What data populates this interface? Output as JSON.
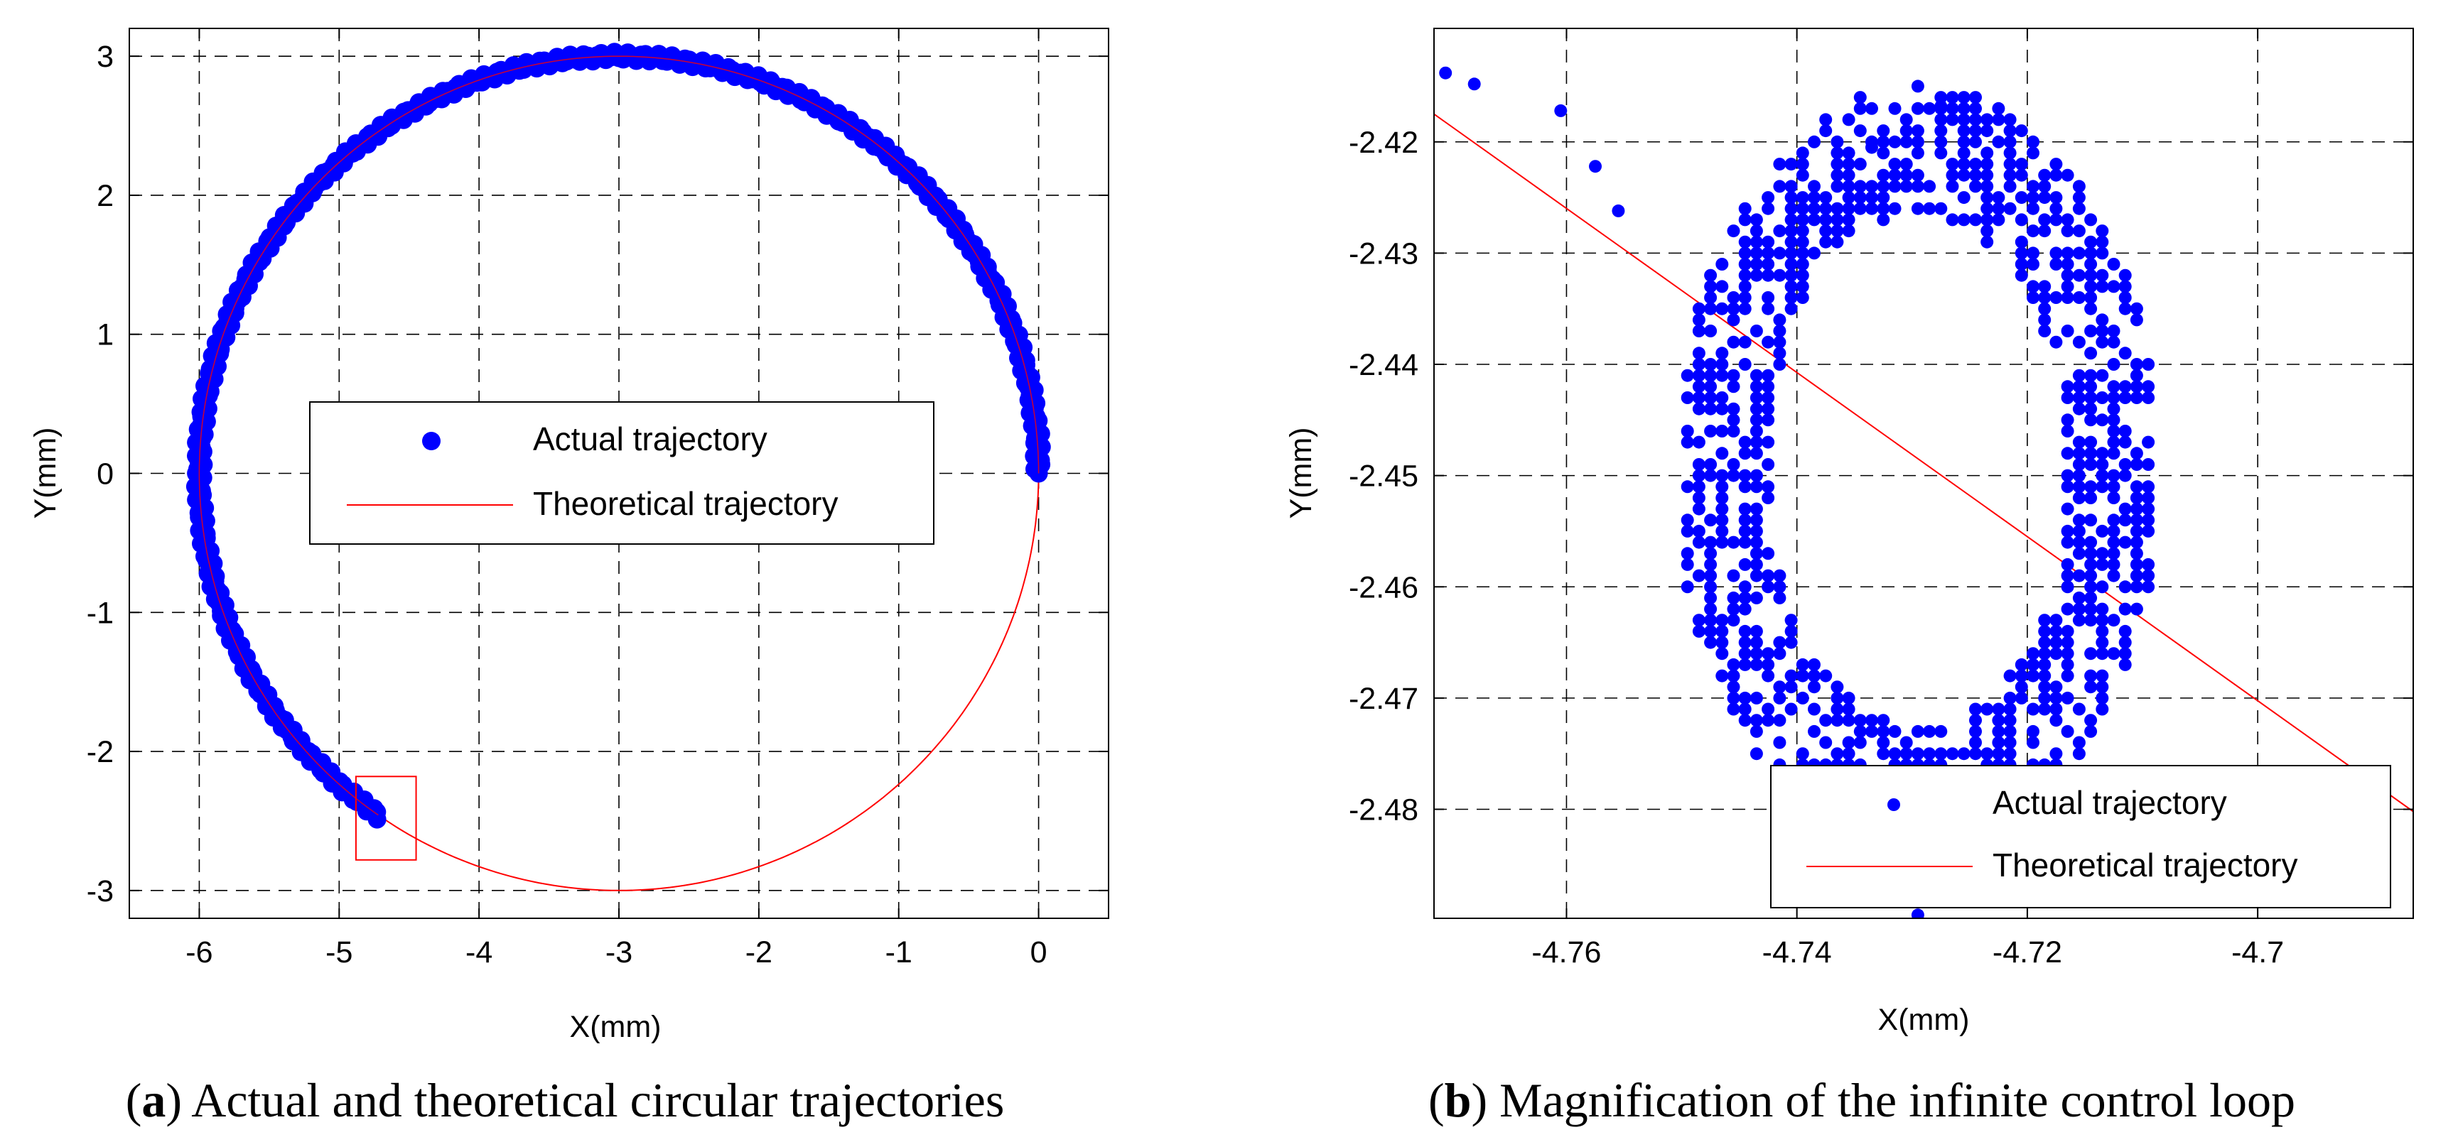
{
  "colors": {
    "actual": "#0000ff",
    "theoretical": "#ff0000",
    "grid": "#000000"
  },
  "chart_data": [
    {
      "type": "scatter",
      "panel": "a",
      "caption_letter": "a",
      "caption_text": "Actual and theoretical circular trajectories",
      "xlabel": "X(mm)",
      "ylabel": "Y(mm)",
      "xlim": [
        -6.5,
        0.5
      ],
      "ylim": [
        -3.2,
        3.2
      ],
      "xticks": [
        -6,
        -5,
        -4,
        -3,
        -2,
        -1,
        0
      ],
      "yticks": [
        -3,
        -2,
        -1,
        0,
        1,
        2,
        3
      ],
      "xtick_labels": [
        "-6",
        "-5",
        "-4",
        "-3",
        "-2",
        "-1",
        "0"
      ],
      "ytick_labels": [
        "-3",
        "-2",
        "-1",
        "0",
        "1",
        "2",
        "3"
      ],
      "grid": true,
      "legend_position": "center",
      "series": [
        {
          "name": "Actual trajectory",
          "kind": "markers",
          "circle": {
            "center": [
              -3,
              0
            ],
            "radius": 3,
            "start_deg": 0,
            "end_deg": 235.5
          }
        },
        {
          "name": "Theoretical trajectory",
          "kind": "line",
          "circle": {
            "center": [
              -3,
              0
            ],
            "radius": 3,
            "start_deg": 0,
            "end_deg": 360
          }
        }
      ],
      "annotation": {
        "label": "zoom box",
        "x_range": [
          -4.88,
          -4.45
        ],
        "y_range": [
          -2.78,
          -2.18
        ]
      }
    },
    {
      "type": "scatter",
      "panel": "b",
      "caption_letter": "b",
      "caption_text": "Magnification of the infinite control loop",
      "xlabel": "X(mm)",
      "ylabel": "Y(mm)",
      "xlim": [
        -4.7715,
        -4.6865
      ],
      "ylim": [
        -2.4898,
        -2.4098
      ],
      "xticks": [
        -4.76,
        -4.74,
        -4.72,
        -4.7
      ],
      "yticks": [
        -2.48,
        -2.47,
        -2.46,
        -2.45,
        -2.44,
        -2.43,
        -2.42
      ],
      "xtick_labels": [
        "-4.76",
        "-4.74",
        "-4.72",
        "-4.7"
      ],
      "ytick_labels": [
        "-2.48",
        "-2.47",
        "-2.46",
        "-2.45",
        "-2.44",
        "-2.43",
        "-2.42"
      ],
      "grid": true,
      "legend_position": "lower-right",
      "series": [
        {
          "name": "Actual trajectory",
          "kind": "markers",
          "ring": {
            "center": [
              -4.7295,
              -2.4495
            ],
            "rx_outer": 0.021,
            "ry_outer": 0.0345,
            "rx_inner": 0.013,
            "ry_inner": 0.023,
            "grid_step": 0.001
          },
          "stray_points": [
            [
              -4.7705,
              -2.4138
            ],
            [
              -4.768,
              -2.4148
            ],
            [
              -4.7605,
              -2.4172
            ],
            [
              -4.7575,
              -2.4222
            ],
            [
              -4.7555,
              -2.4262
            ],
            [
              -4.7295,
              -2.4895
            ],
            [
              -4.7335,
              -2.4205
            ],
            [
              -4.7275,
              -2.4168
            ]
          ]
        },
        {
          "name": "Theoretical trajectory",
          "kind": "line",
          "points": [
            [
              -4.7715,
              -2.4175
            ],
            [
              -4.6865,
              -2.4802
            ]
          ]
        }
      ]
    }
  ]
}
